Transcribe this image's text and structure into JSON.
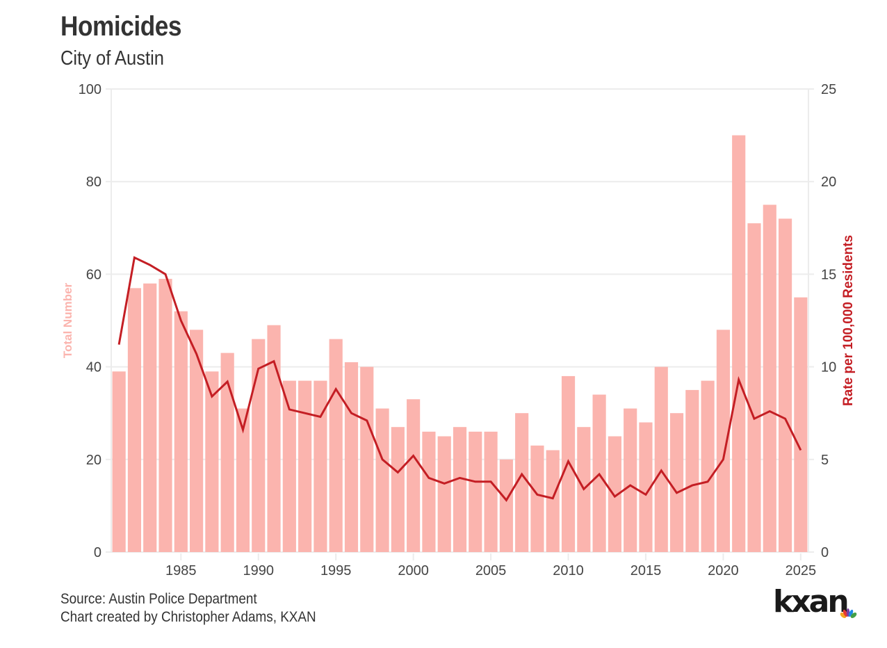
{
  "header": {
    "title": "Homicides",
    "subtitle": "City of Austin"
  },
  "footer": {
    "source": "Source: Austin Police Department",
    "credit": "Chart created by Christopher Adams, KXAN"
  },
  "logo": {
    "text": "kxan",
    "icon": "nbc-peacock-icon"
  },
  "colors": {
    "bar": "#fbb4ae",
    "line": "#c41e24",
    "grid": "#ececec",
    "text": "#333333",
    "left_axis_title": "#fbb4ae",
    "right_axis_title": "#c41e24"
  },
  "chart_data": {
    "type": "bar",
    "title": "Homicides",
    "subtitle": "City of Austin",
    "xlabel": "",
    "ylabel": "Total Number",
    "y2label": "Rate per 100,000 Residents",
    "ylim": [
      0,
      100
    ],
    "y2lim": [
      0,
      25
    ],
    "yticks": [
      0,
      20,
      40,
      60,
      80,
      100
    ],
    "y2ticks": [
      0,
      5,
      10,
      15,
      20,
      25
    ],
    "xticks": [
      1985,
      1990,
      1995,
      2000,
      2005,
      2010,
      2015,
      2020,
      2025
    ],
    "grid": true,
    "legend": "none",
    "x": [
      1981,
      1982,
      1983,
      1984,
      1985,
      1986,
      1987,
      1988,
      1989,
      1990,
      1991,
      1992,
      1993,
      1994,
      1995,
      1996,
      1997,
      1998,
      1999,
      2000,
      2001,
      2002,
      2003,
      2004,
      2005,
      2006,
      2007,
      2008,
      2009,
      2010,
      2011,
      2012,
      2013,
      2014,
      2015,
      2016,
      2017,
      2018,
      2019,
      2020,
      2021,
      2022,
      2023,
      2024,
      2025
    ],
    "series": [
      {
        "name": "Total Number",
        "type": "bar",
        "axis": "left",
        "values": [
          39,
          57,
          58,
          59,
          52,
          48,
          39,
          43,
          31,
          46,
          49,
          37,
          37,
          37,
          46,
          41,
          40,
          31,
          27,
          33,
          26,
          25,
          27,
          26,
          26,
          20,
          30,
          23,
          22,
          38,
          27,
          34,
          25,
          31,
          28,
          40,
          30,
          35,
          37,
          48,
          90,
          71,
          75,
          72,
          55
        ]
      },
      {
        "name": "Rate per 100,000 Residents",
        "type": "line",
        "axis": "right",
        "values": [
          11.2,
          15.9,
          15.5,
          15.0,
          12.5,
          10.7,
          8.4,
          9.2,
          6.6,
          9.9,
          10.3,
          7.7,
          7.5,
          7.3,
          8.8,
          7.5,
          7.1,
          5.0,
          4.3,
          5.2,
          4.0,
          3.7,
          4.0,
          3.8,
          3.8,
          2.8,
          4.2,
          3.1,
          2.9,
          4.9,
          3.4,
          4.2,
          3.0,
          3.6,
          3.1,
          4.4,
          3.2,
          3.6,
          3.8,
          5.0,
          9.3,
          7.2,
          7.6,
          7.2,
          5.5
        ]
      }
    ]
  }
}
